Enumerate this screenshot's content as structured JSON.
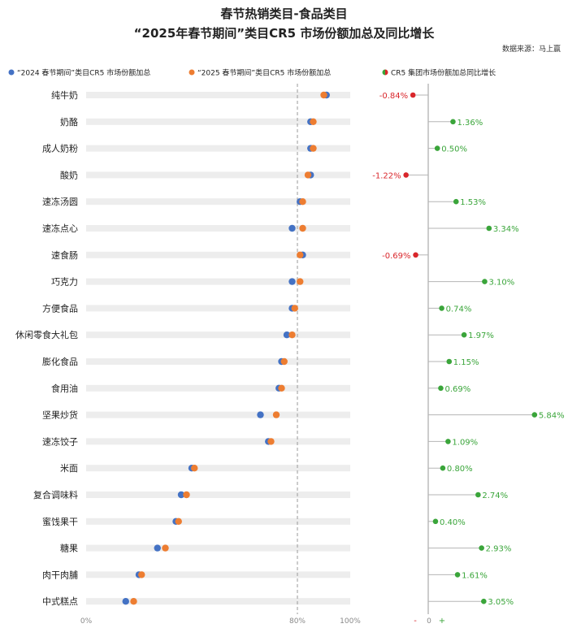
{
  "header": {
    "title_line1": "春节热销类目-食品类目",
    "title_line2": "“2025年春节期间”类目CR5 市场份额加总及同比增长",
    "source": "数据来源：马上赢"
  },
  "colors": {
    "series_2024": "#4472C4",
    "series_2025": "#ED7D31",
    "positive": "#3AA53A",
    "negative": "#D9262B",
    "track": "#EDEDED",
    "ref_line": "#999999"
  },
  "chart_data": [
    {
      "type": "scatter",
      "categories": [
        "纯牛奶",
        "奶酪",
        "成人奶粉",
        "酸奶",
        "速冻汤圆",
        "速冻点心",
        "速食肠",
        "巧克力",
        "方便食品",
        "休闲零食大礼包",
        "膨化食品",
        "食用油",
        "坚果炒货",
        "速冻饺子",
        "米面",
        "复合调味料",
        "蜜饯果干",
        "糖果",
        "肉干肉脯",
        "中式糕点"
      ],
      "series": [
        {
          "name": "“2024 春节期间”类目CR5 市场份额加总",
          "values": [
            91,
            85,
            85,
            85,
            81,
            78,
            82,
            78,
            78,
            76,
            74,
            73,
            66,
            69,
            40,
            36,
            34,
            27,
            20,
            15
          ]
        },
        {
          "name": "“2025 春节期间”类目CR5 市场份额加总",
          "values": [
            90,
            86,
            86,
            84,
            82,
            82,
            81,
            81,
            79,
            78,
            75,
            74,
            72,
            70,
            41,
            38,
            35,
            30,
            21,
            18
          ]
        }
      ],
      "xlim": [
        0,
        100
      ],
      "xticks": [
        "0%",
        "80%",
        "100%"
      ],
      "reference_line": 80
    },
    {
      "type": "lollipop",
      "name": "CR5 集团市场份额加总同比增长",
      "categories": [
        "纯牛奶",
        "奶酪",
        "成人奶粉",
        "酸奶",
        "速冻汤圆",
        "速冻点心",
        "速食肠",
        "巧克力",
        "方便食品",
        "休闲零食大礼包",
        "膨化食品",
        "食用油",
        "坚果炒货",
        "速冻饺子",
        "米面",
        "复合调味料",
        "蜜饯果干",
        "糖果",
        "肉干肉脯",
        "中式糕点"
      ],
      "values": [
        -0.84,
        1.36,
        0.5,
        -1.22,
        1.53,
        3.34,
        -0.69,
        3.1,
        0.74,
        1.97,
        1.15,
        0.69,
        5.84,
        1.09,
        0.8,
        2.74,
        0.4,
        2.93,
        1.61,
        3.05
      ],
      "labels": [
        "-0.84%",
        "1.36%",
        "0.50%",
        "-1.22%",
        "1.53%",
        "3.34%",
        "-0.69%",
        "3.10%",
        "0.74%",
        "1.97%",
        "1.15%",
        "0.69%",
        "5.84%",
        "1.09%",
        "0.80%",
        "2.74%",
        "0.40%",
        "2.93%",
        "1.61%",
        "3.05%"
      ],
      "axis_labels": [
        "-",
        "0",
        "+"
      ]
    }
  ]
}
